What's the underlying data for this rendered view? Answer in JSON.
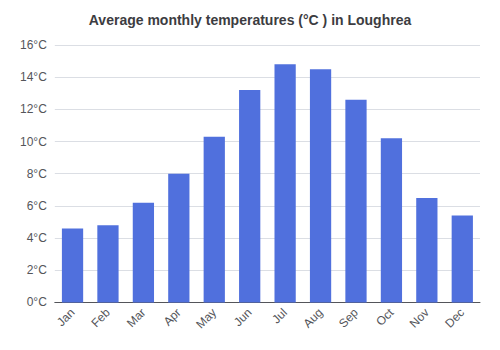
{
  "chart_data": {
    "type": "bar",
    "title": "Average monthly temperatures (°C ) in Loughrea",
    "categories": [
      "Jan",
      "Feb",
      "Mar",
      "Apr",
      "May",
      "Jun",
      "Jul",
      "Aug",
      "Sep",
      "Oct",
      "Nov",
      "Dec"
    ],
    "values": [
      4.6,
      4.8,
      6.2,
      8.0,
      10.3,
      13.2,
      14.8,
      14.5,
      12.6,
      10.2,
      6.5,
      5.4
    ],
    "ylim": [
      0,
      16
    ],
    "yticks": [
      {
        "value": 0,
        "label": "0°C"
      },
      {
        "value": 2,
        "label": "2°C"
      },
      {
        "value": 4,
        "label": "4°C"
      },
      {
        "value": 6,
        "label": "6°C"
      },
      {
        "value": 8,
        "label": "8°C"
      },
      {
        "value": 10,
        "label": "10°C"
      },
      {
        "value": 12,
        "label": "12°C"
      },
      {
        "value": 14,
        "label": "14°C"
      },
      {
        "value": 16,
        "label": "16°C"
      }
    ],
    "grid": true
  }
}
